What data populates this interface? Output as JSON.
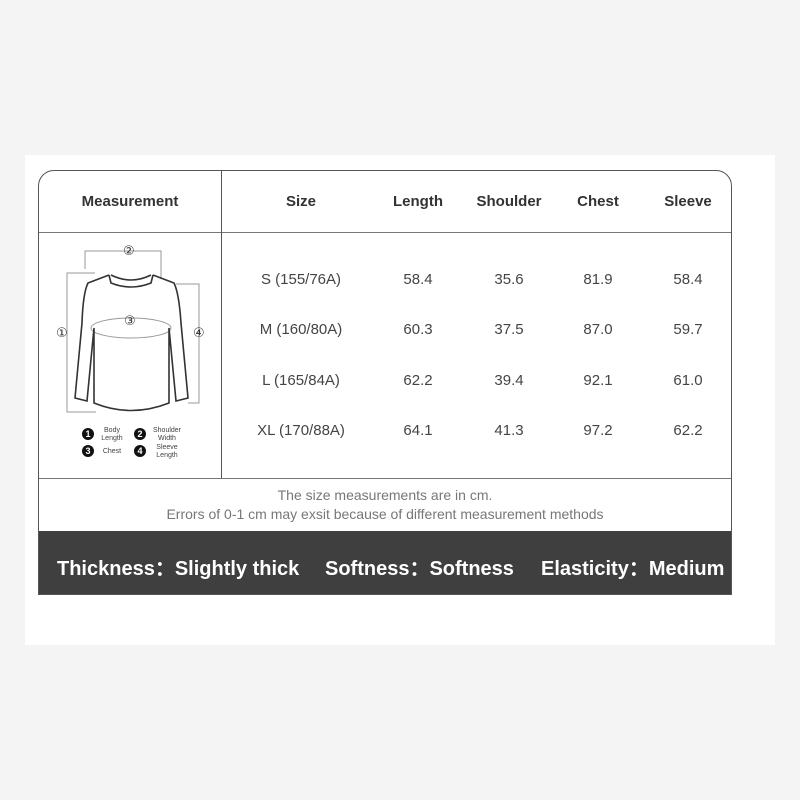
{
  "headers": [
    "Measurement",
    "Size",
    "Length",
    "Shoulder",
    "Chest",
    "Sleeve"
  ],
  "rows": [
    {
      "size": "S (155/76A)",
      "length": "58.4",
      "shoulder": "35.6",
      "chest": "81.9",
      "sleeve": "58.4"
    },
    {
      "size": "M (160/80A)",
      "length": "60.3",
      "shoulder": "37.5",
      "chest": "87.0",
      "sleeve": "59.7"
    },
    {
      "size": "L (165/84A)",
      "length": "62.2",
      "shoulder": "39.4",
      "chest": "92.1",
      "sleeve": "61.0"
    },
    {
      "size": "XL (170/88A)",
      "length": "64.1",
      "shoulder": "41.3",
      "chest": "97.2",
      "sleeve": "62.2"
    }
  ],
  "diagram": {
    "markers": [
      "①",
      "②",
      "③",
      "④"
    ],
    "legend": [
      {
        "num": "1",
        "label": "Body Length"
      },
      {
        "num": "2",
        "label": "Shoulder Width"
      },
      {
        "num": "3",
        "label": "Chest"
      },
      {
        "num": "4",
        "label": "Sleeve Length"
      }
    ]
  },
  "notes": [
    "The size measurements are in cm.",
    "Errors of 0-1 cm may exsit because of different measurement methods"
  ],
  "attributes": [
    {
      "label": "Thickness：Slightly thick"
    },
    {
      "label": "Softness：Softness"
    },
    {
      "label": "Elasticity：Medium"
    }
  ]
}
